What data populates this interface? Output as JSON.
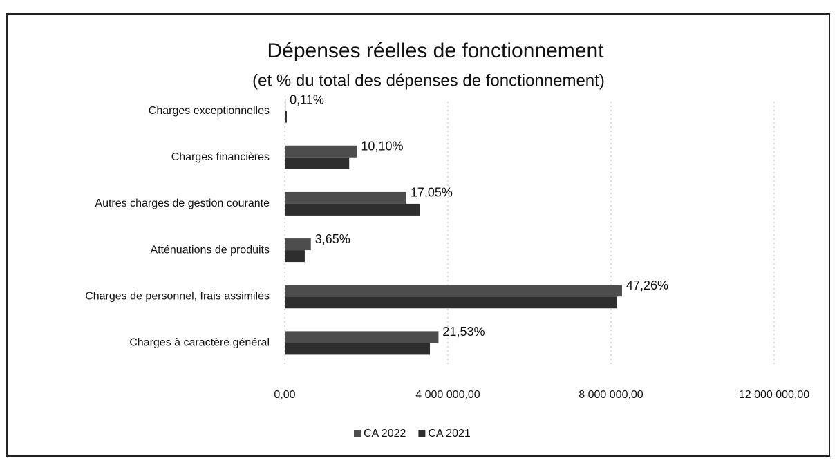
{
  "chart_data": {
    "type": "bar",
    "orientation": "horizontal",
    "title": "Dépenses réelles de fonctionnement",
    "subtitle": "(et % du total des dépenses de fonctionnement)",
    "categories": [
      "Charges exceptionnelles",
      "Charges financières",
      "Autres charges de gestion courante",
      "Atténuations de produits",
      "Charges de personnel, frais assimilés",
      "Charges à caractère général"
    ],
    "series": [
      {
        "name": "CA 2022",
        "color": "#4d4d4d",
        "values": [
          20000,
          1770000,
          2980000,
          640000,
          8270000,
          3770000
        ],
        "data_labels": [
          "0,11%",
          "10,10%",
          "17,05%",
          "3,65%",
          "47,26%",
          "21,53%"
        ]
      },
      {
        "name": "CA 2021",
        "color": "#2e2e2e",
        "values": [
          50000,
          1580000,
          3320000,
          490000,
          8150000,
          3560000
        ]
      }
    ],
    "xlim": [
      0,
      12000000
    ],
    "xticks": [
      {
        "value": 0,
        "label": "0,00"
      },
      {
        "value": 4000000,
        "label": "4 000 000,00"
      },
      {
        "value": 8000000,
        "label": "8 000 000,00"
      },
      {
        "value": 12000000,
        "label": "12 000 000,00"
      }
    ],
    "grid": true,
    "legend": "bottom"
  }
}
